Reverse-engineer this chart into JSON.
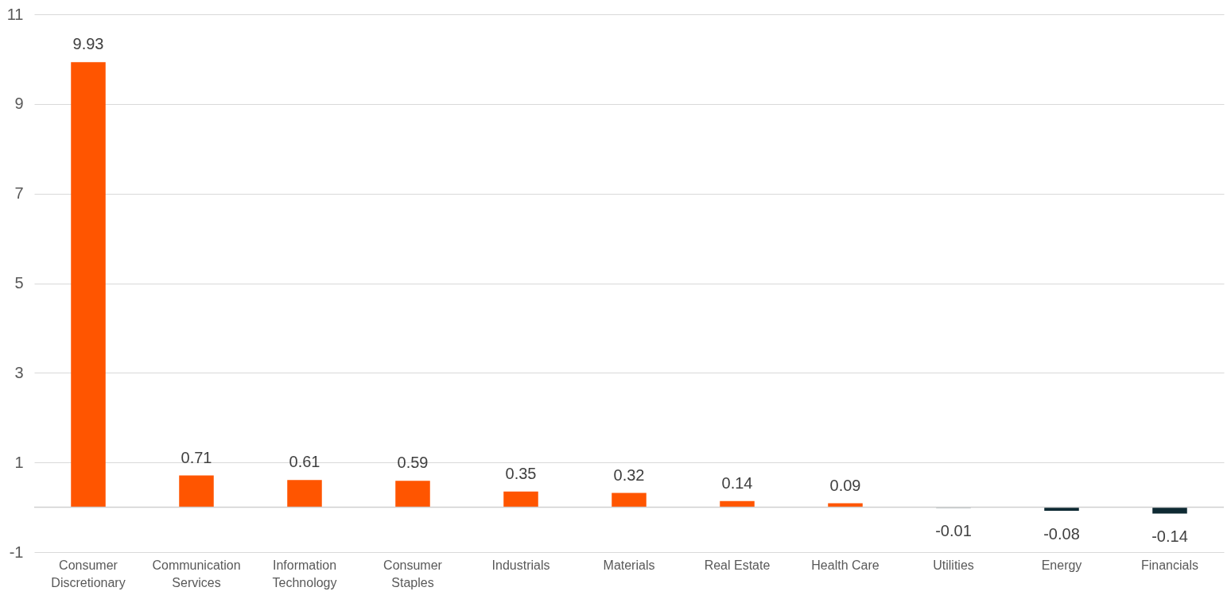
{
  "chart_data": {
    "type": "bar",
    "categories": [
      "Consumer Discretionary",
      "Communication Services",
      "Information Technology",
      "Consumer Staples",
      "Industrials",
      "Materials",
      "Real Estate",
      "Health Care",
      "Utilities",
      "Energy",
      "Financials"
    ],
    "values": [
      9.93,
      0.71,
      0.61,
      0.59,
      0.35,
      0.32,
      0.14,
      0.09,
      -0.01,
      -0.08,
      -0.14
    ],
    "colors": [
      "#ff5500",
      "#ff5500",
      "#ff5500",
      "#ff5500",
      "#ff5500",
      "#ff5500",
      "#ff5500",
      "#ff5500",
      "#0e2a33",
      "#0e2a33",
      "#0e2a33"
    ],
    "ylim": [
      -1,
      11
    ],
    "yticks": [
      -1,
      1,
      3,
      5,
      7,
      9,
      11
    ],
    "ref_lines": [
      {
        "axis": "y",
        "value": 0,
        "color": "#d0d0d0"
      }
    ],
    "grid": "y",
    "data_labels": true
  }
}
